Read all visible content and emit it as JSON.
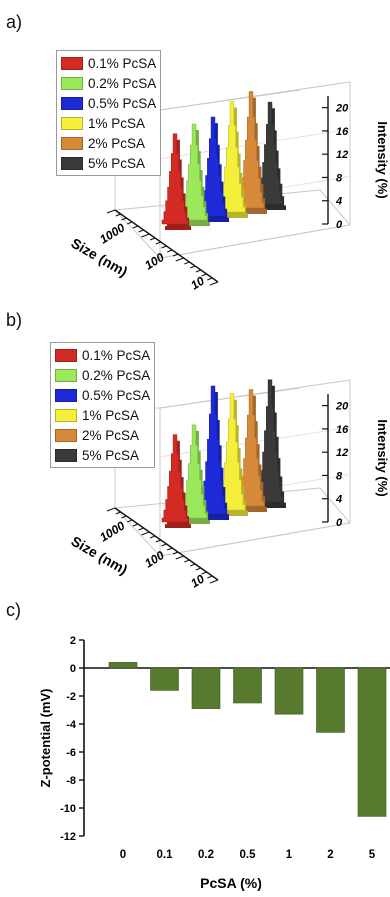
{
  "panels": {
    "a": "a)",
    "b": "b)",
    "c": "c)"
  },
  "colors": {
    "series": [
      "#d32a24",
      "#9be85a",
      "#1e2ad8",
      "#f4ef3a",
      "#d7893a",
      "#3a3a3a"
    ],
    "bar": "#587a2f"
  },
  "chart_data": [
    {
      "type": "3d-bar",
      "panel": "a",
      "title": "",
      "series_names": [
        "0.1% PcSA",
        "0.2% PcSA",
        "0.5% PcSA",
        "1% PcSA",
        "2% PcSA",
        "5% PcSA"
      ],
      "series": [
        {
          "name": "0.1% PcSA",
          "peak_intensity": 15.5
        },
        {
          "name": "0.2% PcSA",
          "peak_intensity": 16.5
        },
        {
          "name": "0.5% PcSA",
          "peak_intensity": 17
        },
        {
          "name": "1% PcSA",
          "peak_intensity": 19
        },
        {
          "name": "2% PcSA",
          "peak_intensity": 20
        },
        {
          "name": "5% PcSA",
          "peak_intensity": 17.5
        }
      ],
      "zlabel": "Intensity (%)",
      "zticks": [
        "0",
        "4",
        "8",
        "12",
        "16",
        "20"
      ],
      "xlabel": "Size (nm)",
      "xticks": [
        "1000",
        "100",
        "10"
      ],
      "zlim": [
        0,
        22
      ]
    },
    {
      "type": "3d-bar",
      "panel": "b",
      "title": "",
      "series_names": [
        "0.1% PcSA",
        "0.2% PcSA",
        "0.5% PcSA",
        "1% PcSA",
        "2% PcSA",
        "5% PcSA"
      ],
      "series": [
        {
          "name": "0.1% PcSA",
          "peak_intensity": 15
        },
        {
          "name": "0.2% PcSA",
          "peak_intensity": 16
        },
        {
          "name": "0.5% PcSA",
          "peak_intensity": 22
        },
        {
          "name": "1% PcSA",
          "peak_intensity": 20
        },
        {
          "name": "2% PcSA",
          "peak_intensity": 20
        },
        {
          "name": "5% PcSA",
          "peak_intensity": 21
        }
      ],
      "zlabel": "Intensity (%)",
      "zticks": [
        "0",
        "4",
        "8",
        "12",
        "16",
        "20"
      ],
      "xlabel": "Size (nm)",
      "xticks": [
        "1000",
        "100",
        "10"
      ],
      "zlim": [
        0,
        22
      ]
    },
    {
      "type": "bar",
      "panel": "c",
      "title": "",
      "categories": [
        "0",
        "0.1",
        "0.2",
        "0.5",
        "1",
        "2",
        "5"
      ],
      "values": [
        0.4,
        -1.6,
        -2.9,
        -2.5,
        -3.3,
        -4.6,
        -10.6
      ],
      "xlabel": "PcSA (%)",
      "ylabel": "Z-potential (mV)",
      "ylim": [
        -12,
        2
      ],
      "yticks": [
        "2",
        "0",
        "-2",
        "-4",
        "-6",
        "-8",
        "-10",
        "-12"
      ]
    }
  ]
}
